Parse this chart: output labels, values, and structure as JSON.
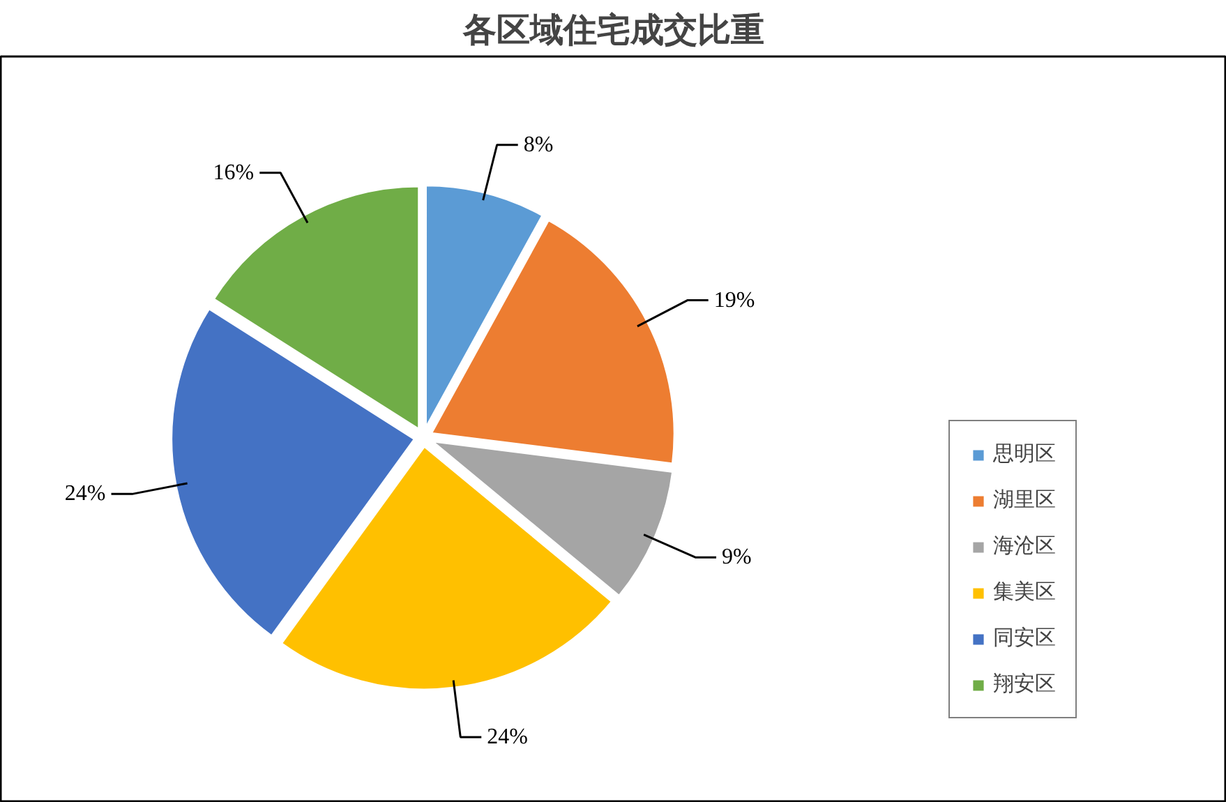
{
  "chart_data": {
    "type": "pie",
    "title": "各区域住宅成交比重",
    "categories": [
      "思明区",
      "湖里区",
      "海沧区",
      "集美区",
      "同安区",
      "翔安区"
    ],
    "values": [
      8,
      19,
      9,
      24,
      24,
      16
    ],
    "colors": [
      "#5b9bd5",
      "#ed7d31",
      "#a5a5a5",
      "#ffc000",
      "#4472c4",
      "#70ad47"
    ],
    "value_labels": [
      "8%",
      "19%",
      "9%",
      "24%",
      "24%",
      "16%"
    ],
    "legend": "right"
  }
}
